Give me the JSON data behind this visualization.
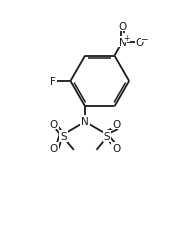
{
  "bg_color": "#ffffff",
  "line_color": "#1a1a1a",
  "line_width": 1.3,
  "font_size": 7.5,
  "fig_width": 1.92,
  "fig_height": 2.32,
  "dpi": 100,
  "xlim": [
    0,
    10
  ],
  "ylim": [
    0,
    12
  ]
}
